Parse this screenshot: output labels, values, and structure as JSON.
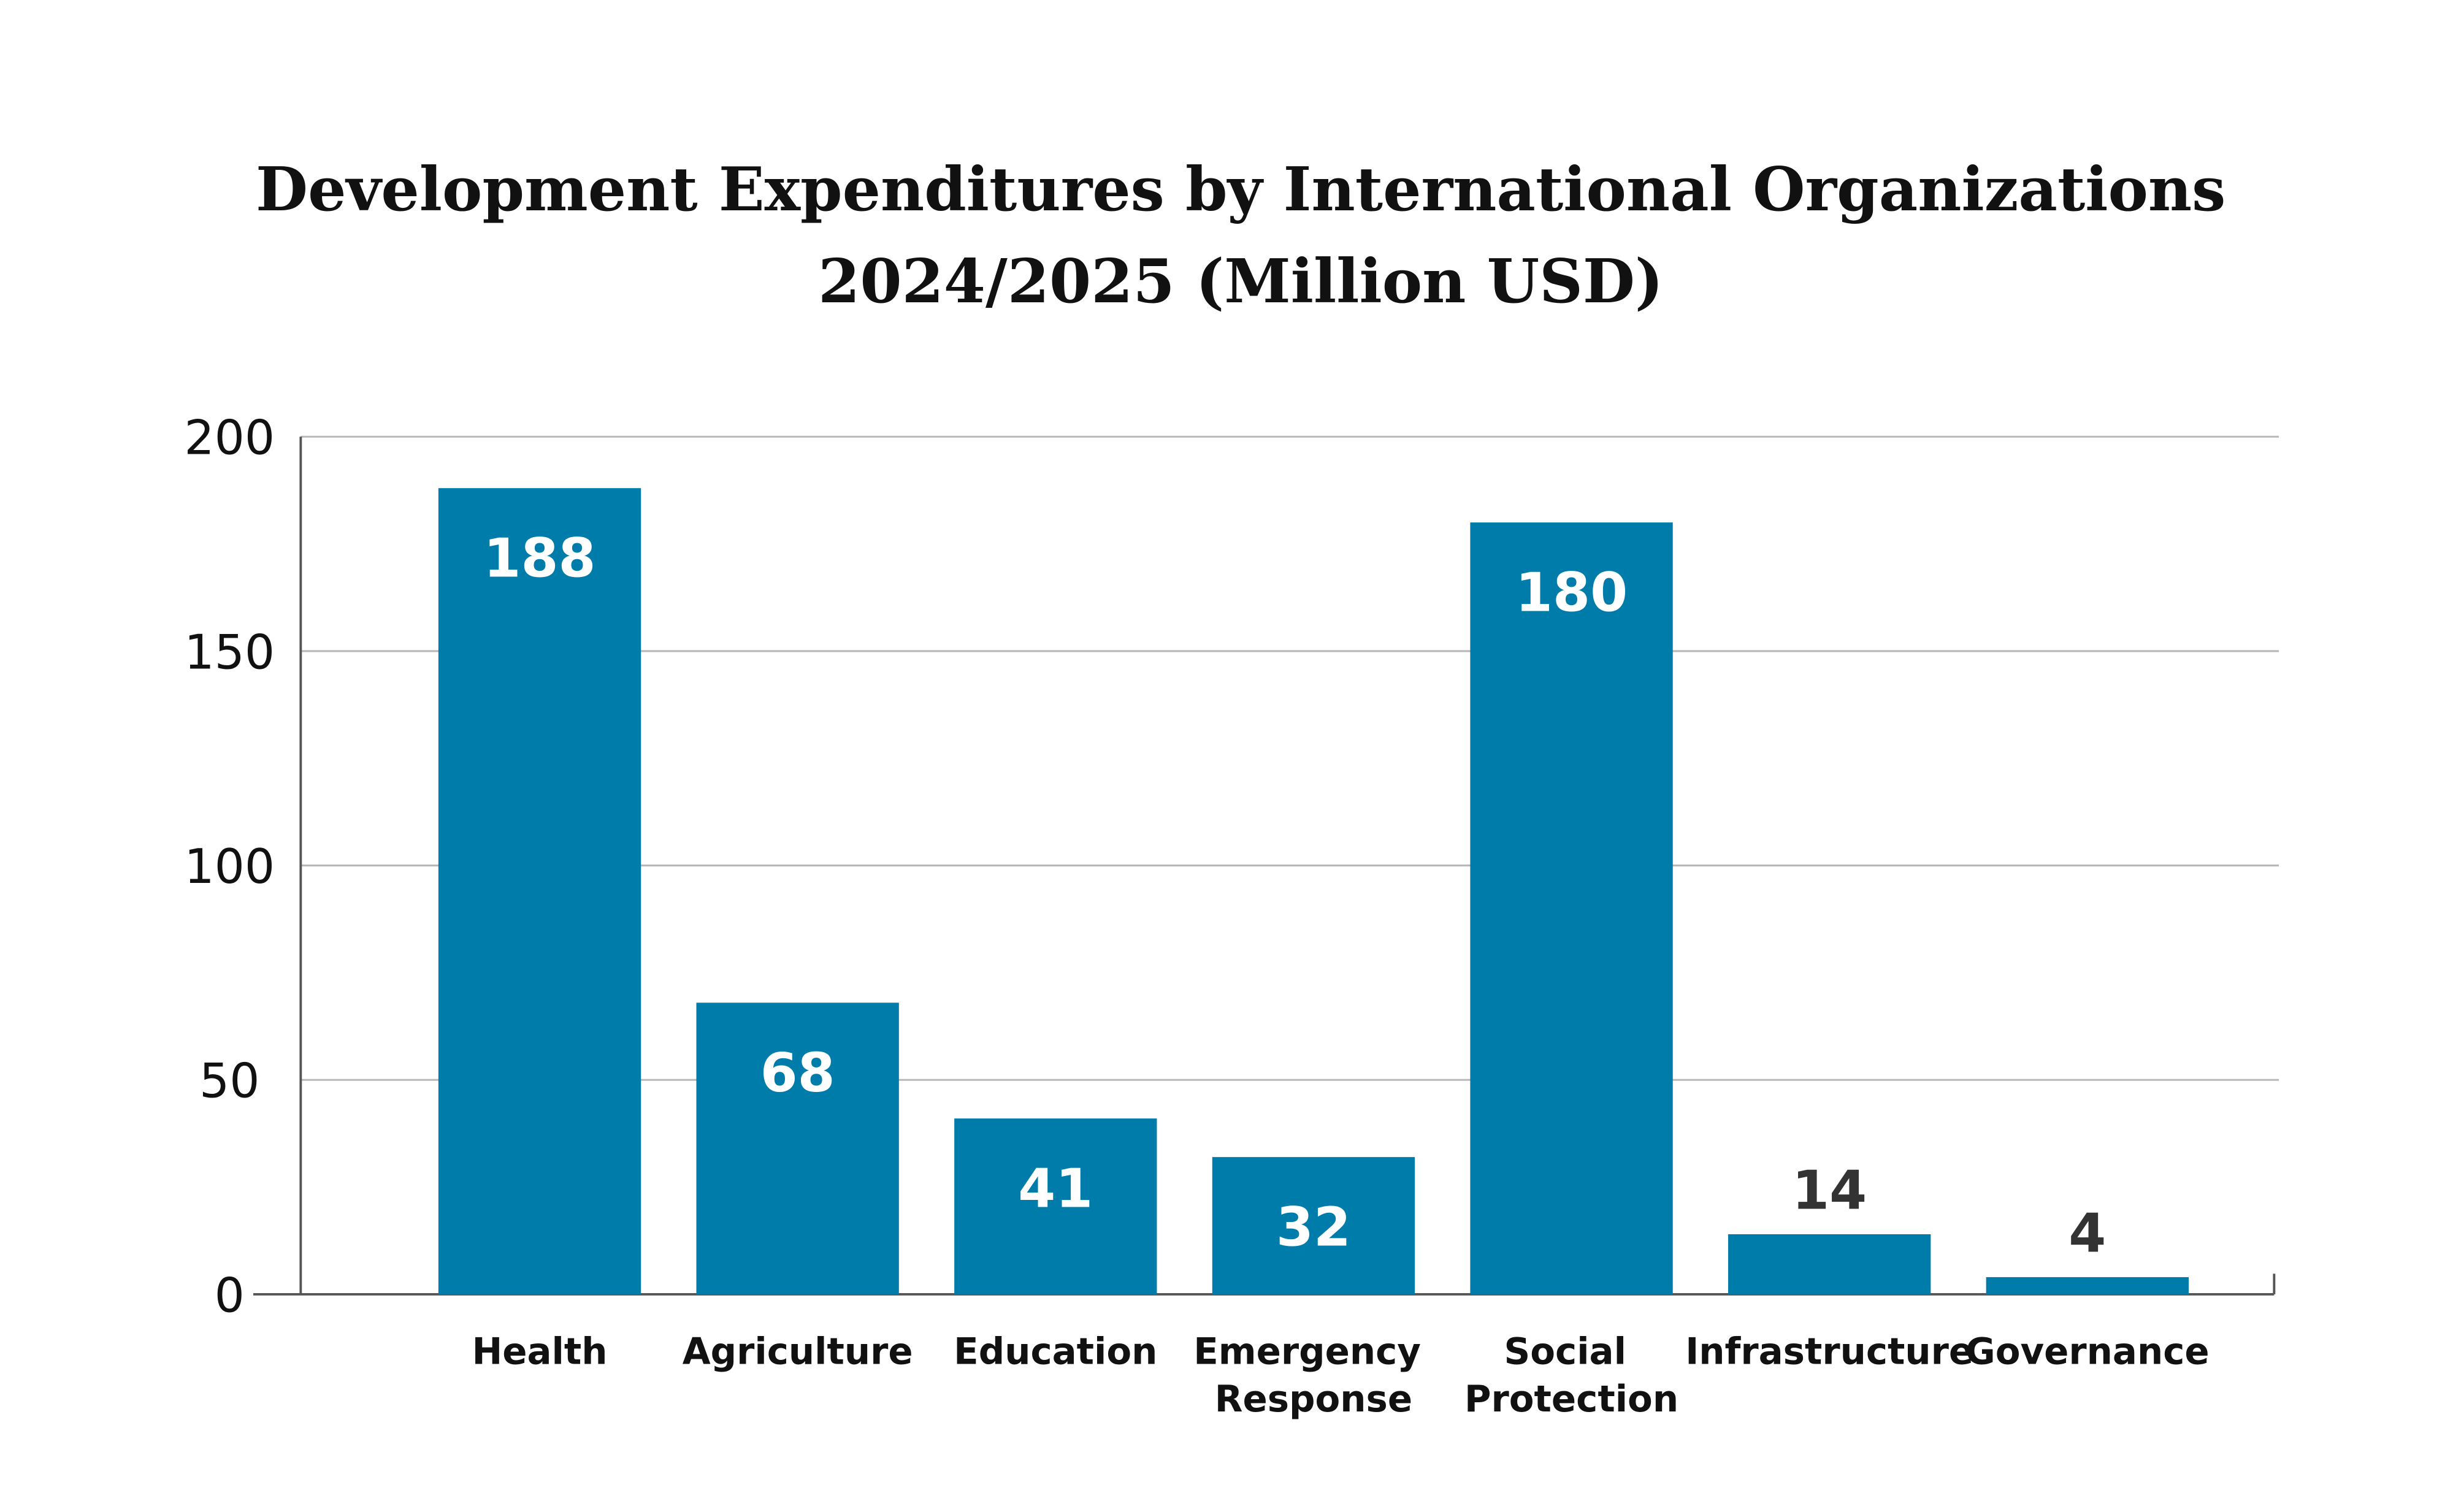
{
  "chart_data": {
    "type": "bar",
    "title": [
      "Development Expenditures by International Organizations",
      "2024/2025  (Million USD)"
    ],
    "categories": [
      "Health",
      "Agriculture",
      "Education",
      "Emergency Response",
      "Social Protection",
      "Infrastructure",
      "Governance"
    ],
    "values": [
      188,
      68,
      41,
      32,
      180,
      14,
      4
    ],
    "color": "#007caa",
    "ylim": [
      0,
      200
    ],
    "yticks": [
      0,
      50,
      100,
      150,
      200
    ],
    "grid": true
  }
}
